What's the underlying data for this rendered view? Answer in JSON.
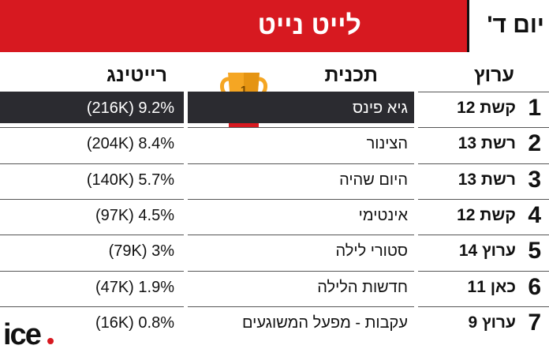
{
  "header": {
    "title": "לייט נייט",
    "day": "יום ד'"
  },
  "columns": {
    "channel": "ערוץ",
    "show": "תכנית",
    "rating": "רייטינג"
  },
  "trophy": {
    "label": "1",
    "icon": "trophy-icon"
  },
  "rows": [
    {
      "rank": "1",
      "channel": "קשת 12",
      "show": "גיא פינס",
      "rating": "(216K) 9.2%"
    },
    {
      "rank": "2",
      "channel": "רשת 13",
      "show": "הצינור",
      "rating": "(204K) 8.4%"
    },
    {
      "rank": "3",
      "channel": "רשת 13",
      "show": "היום שהיה",
      "rating": "(140K) 5.7%"
    },
    {
      "rank": "4",
      "channel": "קשת 12",
      "show": "אינטימי",
      "rating": "(97K) 4.5%"
    },
    {
      "rank": "5",
      "channel": "ערוץ 14",
      "show": "סטורי לילה",
      "rating": "(79K) 3%"
    },
    {
      "rank": "6",
      "channel": "כאן 11",
      "show": "חדשות הלילה",
      "rating": "(47K) 1.9%"
    },
    {
      "rank": "7",
      "channel": "ערוץ 9",
      "show": "עקבות - מפעל המשוגעים",
      "rating": "(16K) 0.8%"
    }
  ],
  "logo": {
    "text": "ice"
  },
  "colors": {
    "accent": "#d71920",
    "highlight_row": "#2b2b30",
    "trophy_gold": "#f5a623"
  }
}
